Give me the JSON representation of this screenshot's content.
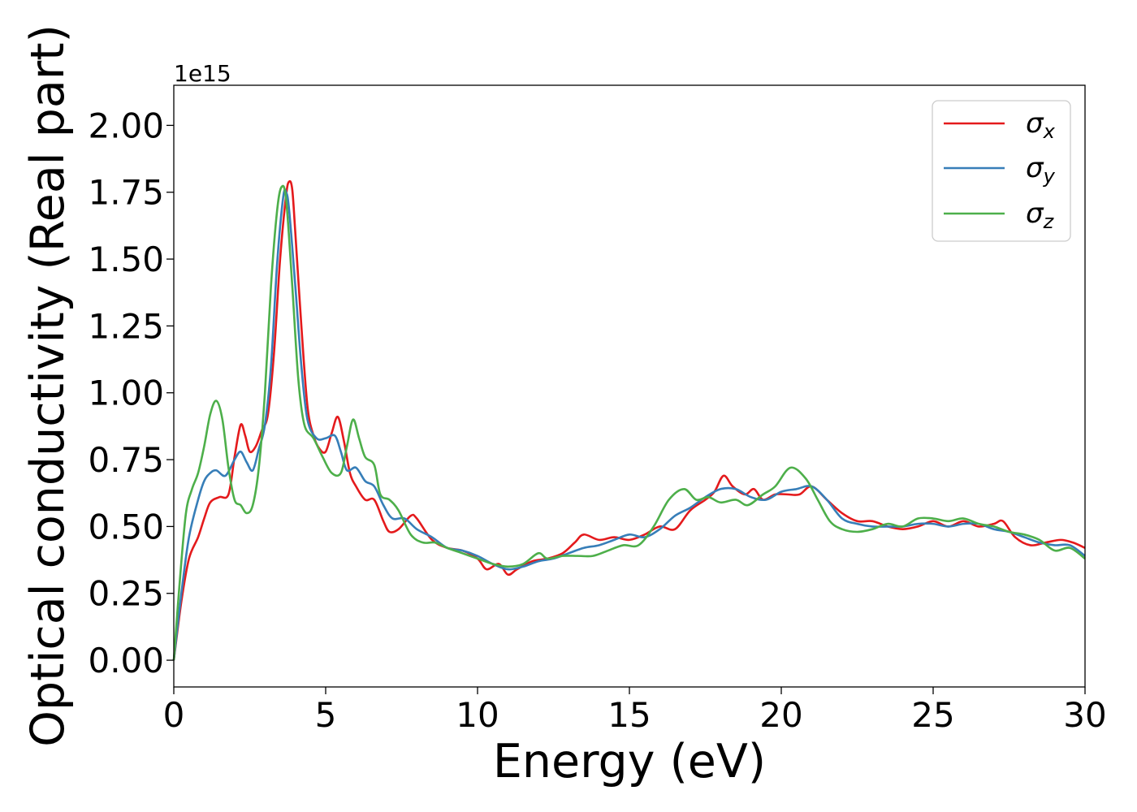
{
  "chart_data": {
    "type": "line",
    "title": "",
    "xlabel": "Energy (eV)",
    "ylabel": "Optical conductivity (Real part)",
    "y_offset_label": "1e15",
    "xlim": [
      0,
      30
    ],
    "ylim": [
      -0.1,
      2.15
    ],
    "x_ticks": [
      0,
      5,
      10,
      15,
      20,
      25,
      30
    ],
    "x_tick_labels": [
      "0",
      "5",
      "10",
      "15",
      "20",
      "25",
      "30"
    ],
    "y_ticks": [
      0.0,
      0.25,
      0.5,
      0.75,
      1.0,
      1.25,
      1.5,
      1.75,
      2.0
    ],
    "y_tick_labels": [
      "0.00",
      "0.25",
      "0.50",
      "0.75",
      "1.00",
      "1.25",
      "1.50",
      "1.75",
      "2.00"
    ],
    "grid": false,
    "legend_position": "top-right",
    "series": [
      {
        "name": "σx",
        "symbol": "σ",
        "subscript": "x",
        "color": "#e41a1c",
        "points": [
          [
            0.0,
            0.0
          ],
          [
            0.25,
            0.22
          ],
          [
            0.5,
            0.38
          ],
          [
            0.8,
            0.46
          ],
          [
            1.0,
            0.53
          ],
          [
            1.2,
            0.59
          ],
          [
            1.5,
            0.61
          ],
          [
            1.8,
            0.62
          ],
          [
            2.0,
            0.76
          ],
          [
            2.2,
            0.88
          ],
          [
            2.35,
            0.84
          ],
          [
            2.5,
            0.78
          ],
          [
            2.7,
            0.8
          ],
          [
            2.9,
            0.86
          ],
          [
            3.1,
            0.92
          ],
          [
            3.3,
            1.15
          ],
          [
            3.5,
            1.5
          ],
          [
            3.7,
            1.74
          ],
          [
            3.8,
            1.79
          ],
          [
            3.9,
            1.76
          ],
          [
            4.0,
            1.6
          ],
          [
            4.2,
            1.25
          ],
          [
            4.4,
            0.95
          ],
          [
            4.6,
            0.84
          ],
          [
            4.8,
            0.79
          ],
          [
            5.0,
            0.78
          ],
          [
            5.2,
            0.85
          ],
          [
            5.4,
            0.91
          ],
          [
            5.6,
            0.82
          ],
          [
            5.8,
            0.7
          ],
          [
            6.0,
            0.65
          ],
          [
            6.3,
            0.6
          ],
          [
            6.6,
            0.6
          ],
          [
            6.9,
            0.52
          ],
          [
            7.1,
            0.48
          ],
          [
            7.4,
            0.49
          ],
          [
            7.8,
            0.54
          ],
          [
            8.0,
            0.53
          ],
          [
            8.5,
            0.45
          ],
          [
            9.0,
            0.42
          ],
          [
            9.5,
            0.41
          ],
          [
            10.0,
            0.38
          ],
          [
            10.3,
            0.34
          ],
          [
            10.7,
            0.36
          ],
          [
            11.0,
            0.32
          ],
          [
            11.3,
            0.34
          ],
          [
            11.8,
            0.37
          ],
          [
            12.3,
            0.38
          ],
          [
            12.8,
            0.4
          ],
          [
            13.2,
            0.44
          ],
          [
            13.5,
            0.47
          ],
          [
            14.0,
            0.45
          ],
          [
            14.5,
            0.46
          ],
          [
            15.0,
            0.45
          ],
          [
            15.5,
            0.47
          ],
          [
            16.0,
            0.5
          ],
          [
            16.5,
            0.49
          ],
          [
            17.0,
            0.56
          ],
          [
            17.5,
            0.6
          ],
          [
            17.8,
            0.63
          ],
          [
            18.1,
            0.69
          ],
          [
            18.4,
            0.65
          ],
          [
            18.8,
            0.62
          ],
          [
            19.1,
            0.64
          ],
          [
            19.4,
            0.6
          ],
          [
            19.8,
            0.62
          ],
          [
            20.2,
            0.62
          ],
          [
            20.6,
            0.62
          ],
          [
            21.0,
            0.65
          ],
          [
            21.5,
            0.6
          ],
          [
            22.0,
            0.55
          ],
          [
            22.5,
            0.52
          ],
          [
            23.0,
            0.52
          ],
          [
            23.5,
            0.5
          ],
          [
            24.0,
            0.49
          ],
          [
            24.5,
            0.5
          ],
          [
            25.0,
            0.52
          ],
          [
            25.5,
            0.5
          ],
          [
            26.0,
            0.52
          ],
          [
            26.5,
            0.5
          ],
          [
            27.0,
            0.51
          ],
          [
            27.3,
            0.52
          ],
          [
            27.7,
            0.46
          ],
          [
            28.2,
            0.43
          ],
          [
            28.7,
            0.44
          ],
          [
            29.2,
            0.45
          ],
          [
            29.6,
            0.44
          ],
          [
            30.0,
            0.42
          ]
        ]
      },
      {
        "name": "σy",
        "symbol": "σ",
        "subscript": "y",
        "color": "#377eb8",
        "points": [
          [
            0.0,
            0.0
          ],
          [
            0.25,
            0.25
          ],
          [
            0.5,
            0.46
          ],
          [
            0.8,
            0.6
          ],
          [
            1.0,
            0.67
          ],
          [
            1.2,
            0.7
          ],
          [
            1.4,
            0.71
          ],
          [
            1.7,
            0.69
          ],
          [
            2.0,
            0.75
          ],
          [
            2.2,
            0.78
          ],
          [
            2.4,
            0.74
          ],
          [
            2.6,
            0.71
          ],
          [
            2.8,
            0.79
          ],
          [
            3.0,
            0.88
          ],
          [
            3.2,
            1.1
          ],
          [
            3.4,
            1.48
          ],
          [
            3.6,
            1.73
          ],
          [
            3.7,
            1.75
          ],
          [
            3.8,
            1.68
          ],
          [
            4.0,
            1.4
          ],
          [
            4.2,
            1.1
          ],
          [
            4.4,
            0.9
          ],
          [
            4.7,
            0.83
          ],
          [
            5.0,
            0.83
          ],
          [
            5.3,
            0.84
          ],
          [
            5.5,
            0.78
          ],
          [
            5.7,
            0.71
          ],
          [
            6.0,
            0.72
          ],
          [
            6.3,
            0.67
          ],
          [
            6.6,
            0.65
          ],
          [
            6.9,
            0.58
          ],
          [
            7.2,
            0.53
          ],
          [
            7.6,
            0.53
          ],
          [
            8.0,
            0.49
          ],
          [
            8.5,
            0.46
          ],
          [
            9.0,
            0.42
          ],
          [
            9.5,
            0.41
          ],
          [
            10.0,
            0.39
          ],
          [
            10.5,
            0.36
          ],
          [
            11.0,
            0.34
          ],
          [
            11.5,
            0.35
          ],
          [
            12.0,
            0.37
          ],
          [
            12.5,
            0.38
          ],
          [
            13.0,
            0.4
          ],
          [
            13.5,
            0.42
          ],
          [
            14.0,
            0.43
          ],
          [
            14.5,
            0.45
          ],
          [
            15.0,
            0.47
          ],
          [
            15.5,
            0.46
          ],
          [
            16.0,
            0.49
          ],
          [
            16.5,
            0.54
          ],
          [
            17.0,
            0.57
          ],
          [
            17.5,
            0.61
          ],
          [
            18.0,
            0.64
          ],
          [
            18.5,
            0.64
          ],
          [
            19.0,
            0.61
          ],
          [
            19.5,
            0.6
          ],
          [
            20.0,
            0.63
          ],
          [
            20.5,
            0.64
          ],
          [
            21.0,
            0.65
          ],
          [
            21.5,
            0.6
          ],
          [
            22.0,
            0.53
          ],
          [
            22.5,
            0.51
          ],
          [
            23.0,
            0.5
          ],
          [
            23.5,
            0.5
          ],
          [
            24.0,
            0.5
          ],
          [
            24.5,
            0.51
          ],
          [
            25.0,
            0.51
          ],
          [
            25.5,
            0.5
          ],
          [
            26.0,
            0.51
          ],
          [
            26.5,
            0.51
          ],
          [
            27.0,
            0.49
          ],
          [
            27.5,
            0.48
          ],
          [
            28.0,
            0.46
          ],
          [
            28.5,
            0.44
          ],
          [
            29.0,
            0.43
          ],
          [
            29.5,
            0.43
          ],
          [
            30.0,
            0.39
          ]
        ]
      },
      {
        "name": "σz",
        "symbol": "σ",
        "subscript": "z",
        "color": "#4daf4a",
        "points": [
          [
            0.0,
            0.0
          ],
          [
            0.2,
            0.3
          ],
          [
            0.4,
            0.55
          ],
          [
            0.6,
            0.64
          ],
          [
            0.8,
            0.7
          ],
          [
            1.0,
            0.8
          ],
          [
            1.2,
            0.92
          ],
          [
            1.4,
            0.97
          ],
          [
            1.6,
            0.9
          ],
          [
            1.8,
            0.72
          ],
          [
            2.0,
            0.6
          ],
          [
            2.2,
            0.58
          ],
          [
            2.4,
            0.55
          ],
          [
            2.6,
            0.58
          ],
          [
            2.8,
            0.72
          ],
          [
            3.0,
            1.0
          ],
          [
            3.2,
            1.4
          ],
          [
            3.4,
            1.68
          ],
          [
            3.55,
            1.77
          ],
          [
            3.7,
            1.72
          ],
          [
            3.9,
            1.4
          ],
          [
            4.1,
            1.05
          ],
          [
            4.3,
            0.88
          ],
          [
            4.6,
            0.83
          ],
          [
            4.9,
            0.76
          ],
          [
            5.2,
            0.7
          ],
          [
            5.5,
            0.7
          ],
          [
            5.7,
            0.8
          ],
          [
            5.9,
            0.9
          ],
          [
            6.1,
            0.83
          ],
          [
            6.3,
            0.76
          ],
          [
            6.6,
            0.73
          ],
          [
            6.8,
            0.62
          ],
          [
            7.1,
            0.6
          ],
          [
            7.4,
            0.56
          ],
          [
            7.8,
            0.47
          ],
          [
            8.2,
            0.44
          ],
          [
            8.6,
            0.44
          ],
          [
            9.0,
            0.42
          ],
          [
            9.5,
            0.4
          ],
          [
            10.0,
            0.38
          ],
          [
            10.5,
            0.36
          ],
          [
            11.0,
            0.35
          ],
          [
            11.5,
            0.36
          ],
          [
            12.0,
            0.4
          ],
          [
            12.3,
            0.38
          ],
          [
            12.8,
            0.39
          ],
          [
            13.3,
            0.39
          ],
          [
            13.8,
            0.39
          ],
          [
            14.3,
            0.41
          ],
          [
            14.8,
            0.43
          ],
          [
            15.3,
            0.43
          ],
          [
            15.8,
            0.5
          ],
          [
            16.3,
            0.6
          ],
          [
            16.8,
            0.64
          ],
          [
            17.2,
            0.6
          ],
          [
            17.6,
            0.61
          ],
          [
            18.0,
            0.59
          ],
          [
            18.5,
            0.6
          ],
          [
            18.9,
            0.58
          ],
          [
            19.4,
            0.62
          ],
          [
            19.8,
            0.65
          ],
          [
            20.3,
            0.72
          ],
          [
            20.8,
            0.68
          ],
          [
            21.2,
            0.6
          ],
          [
            21.6,
            0.52
          ],
          [
            22.0,
            0.49
          ],
          [
            22.5,
            0.48
          ],
          [
            23.0,
            0.49
          ],
          [
            23.5,
            0.51
          ],
          [
            24.0,
            0.5
          ],
          [
            24.5,
            0.53
          ],
          [
            25.0,
            0.53
          ],
          [
            25.5,
            0.52
          ],
          [
            26.0,
            0.53
          ],
          [
            26.5,
            0.51
          ],
          [
            27.0,
            0.5
          ],
          [
            27.5,
            0.48
          ],
          [
            28.0,
            0.47
          ],
          [
            28.5,
            0.45
          ],
          [
            29.0,
            0.41
          ],
          [
            29.5,
            0.42
          ],
          [
            30.0,
            0.38
          ]
        ]
      }
    ]
  }
}
